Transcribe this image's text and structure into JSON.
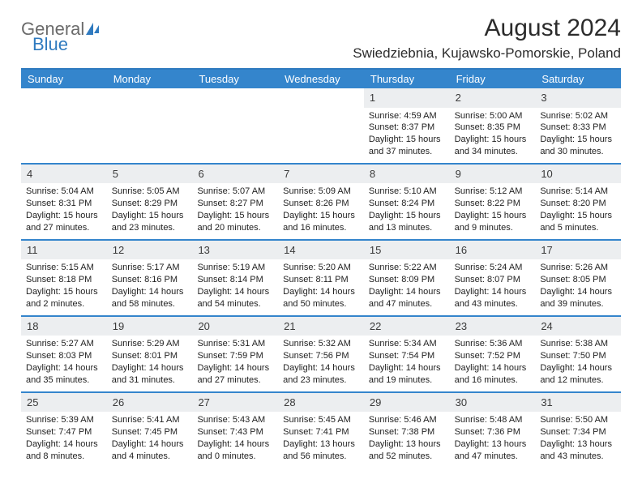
{
  "logo": {
    "part1": "General",
    "part2": "Blue"
  },
  "title": "August 2024",
  "location": "Swiedziebnia, Kujawsko-Pomorskie, Poland",
  "colors": {
    "header_bg": "#3485cc",
    "header_text": "#ffffff",
    "rule": "#2f7abf",
    "daynum_bg": "#eceef0",
    "text": "#222222",
    "logo_gray": "#6b6b6b",
    "logo_blue": "#2f7abf"
  },
  "fonts": {
    "title_size_pt": 22,
    "location_size_pt": 13,
    "dow_size_pt": 10,
    "daynum_size_pt": 10,
    "body_size_pt": 8
  },
  "days_of_week": [
    "Sunday",
    "Monday",
    "Tuesday",
    "Wednesday",
    "Thursday",
    "Friday",
    "Saturday"
  ],
  "weeks": [
    [
      {
        "n": "",
        "sunrise": "",
        "sunset": "",
        "daylight": ""
      },
      {
        "n": "",
        "sunrise": "",
        "sunset": "",
        "daylight": ""
      },
      {
        "n": "",
        "sunrise": "",
        "sunset": "",
        "daylight": ""
      },
      {
        "n": "",
        "sunrise": "",
        "sunset": "",
        "daylight": ""
      },
      {
        "n": "1",
        "sunrise": "Sunrise: 4:59 AM",
        "sunset": "Sunset: 8:37 PM",
        "daylight": "Daylight: 15 hours and 37 minutes."
      },
      {
        "n": "2",
        "sunrise": "Sunrise: 5:00 AM",
        "sunset": "Sunset: 8:35 PM",
        "daylight": "Daylight: 15 hours and 34 minutes."
      },
      {
        "n": "3",
        "sunrise": "Sunrise: 5:02 AM",
        "sunset": "Sunset: 8:33 PM",
        "daylight": "Daylight: 15 hours and 30 minutes."
      }
    ],
    [
      {
        "n": "4",
        "sunrise": "Sunrise: 5:04 AM",
        "sunset": "Sunset: 8:31 PM",
        "daylight": "Daylight: 15 hours and 27 minutes."
      },
      {
        "n": "5",
        "sunrise": "Sunrise: 5:05 AM",
        "sunset": "Sunset: 8:29 PM",
        "daylight": "Daylight: 15 hours and 23 minutes."
      },
      {
        "n": "6",
        "sunrise": "Sunrise: 5:07 AM",
        "sunset": "Sunset: 8:27 PM",
        "daylight": "Daylight: 15 hours and 20 minutes."
      },
      {
        "n": "7",
        "sunrise": "Sunrise: 5:09 AM",
        "sunset": "Sunset: 8:26 PM",
        "daylight": "Daylight: 15 hours and 16 minutes."
      },
      {
        "n": "8",
        "sunrise": "Sunrise: 5:10 AM",
        "sunset": "Sunset: 8:24 PM",
        "daylight": "Daylight: 15 hours and 13 minutes."
      },
      {
        "n": "9",
        "sunrise": "Sunrise: 5:12 AM",
        "sunset": "Sunset: 8:22 PM",
        "daylight": "Daylight: 15 hours and 9 minutes."
      },
      {
        "n": "10",
        "sunrise": "Sunrise: 5:14 AM",
        "sunset": "Sunset: 8:20 PM",
        "daylight": "Daylight: 15 hours and 5 minutes."
      }
    ],
    [
      {
        "n": "11",
        "sunrise": "Sunrise: 5:15 AM",
        "sunset": "Sunset: 8:18 PM",
        "daylight": "Daylight: 15 hours and 2 minutes."
      },
      {
        "n": "12",
        "sunrise": "Sunrise: 5:17 AM",
        "sunset": "Sunset: 8:16 PM",
        "daylight": "Daylight: 14 hours and 58 minutes."
      },
      {
        "n": "13",
        "sunrise": "Sunrise: 5:19 AM",
        "sunset": "Sunset: 8:14 PM",
        "daylight": "Daylight: 14 hours and 54 minutes."
      },
      {
        "n": "14",
        "sunrise": "Sunrise: 5:20 AM",
        "sunset": "Sunset: 8:11 PM",
        "daylight": "Daylight: 14 hours and 50 minutes."
      },
      {
        "n": "15",
        "sunrise": "Sunrise: 5:22 AM",
        "sunset": "Sunset: 8:09 PM",
        "daylight": "Daylight: 14 hours and 47 minutes."
      },
      {
        "n": "16",
        "sunrise": "Sunrise: 5:24 AM",
        "sunset": "Sunset: 8:07 PM",
        "daylight": "Daylight: 14 hours and 43 minutes."
      },
      {
        "n": "17",
        "sunrise": "Sunrise: 5:26 AM",
        "sunset": "Sunset: 8:05 PM",
        "daylight": "Daylight: 14 hours and 39 minutes."
      }
    ],
    [
      {
        "n": "18",
        "sunrise": "Sunrise: 5:27 AM",
        "sunset": "Sunset: 8:03 PM",
        "daylight": "Daylight: 14 hours and 35 minutes."
      },
      {
        "n": "19",
        "sunrise": "Sunrise: 5:29 AM",
        "sunset": "Sunset: 8:01 PM",
        "daylight": "Daylight: 14 hours and 31 minutes."
      },
      {
        "n": "20",
        "sunrise": "Sunrise: 5:31 AM",
        "sunset": "Sunset: 7:59 PM",
        "daylight": "Daylight: 14 hours and 27 minutes."
      },
      {
        "n": "21",
        "sunrise": "Sunrise: 5:32 AM",
        "sunset": "Sunset: 7:56 PM",
        "daylight": "Daylight: 14 hours and 23 minutes."
      },
      {
        "n": "22",
        "sunrise": "Sunrise: 5:34 AM",
        "sunset": "Sunset: 7:54 PM",
        "daylight": "Daylight: 14 hours and 19 minutes."
      },
      {
        "n": "23",
        "sunrise": "Sunrise: 5:36 AM",
        "sunset": "Sunset: 7:52 PM",
        "daylight": "Daylight: 14 hours and 16 minutes."
      },
      {
        "n": "24",
        "sunrise": "Sunrise: 5:38 AM",
        "sunset": "Sunset: 7:50 PM",
        "daylight": "Daylight: 14 hours and 12 minutes."
      }
    ],
    [
      {
        "n": "25",
        "sunrise": "Sunrise: 5:39 AM",
        "sunset": "Sunset: 7:47 PM",
        "daylight": "Daylight: 14 hours and 8 minutes."
      },
      {
        "n": "26",
        "sunrise": "Sunrise: 5:41 AM",
        "sunset": "Sunset: 7:45 PM",
        "daylight": "Daylight: 14 hours and 4 minutes."
      },
      {
        "n": "27",
        "sunrise": "Sunrise: 5:43 AM",
        "sunset": "Sunset: 7:43 PM",
        "daylight": "Daylight: 14 hours and 0 minutes."
      },
      {
        "n": "28",
        "sunrise": "Sunrise: 5:45 AM",
        "sunset": "Sunset: 7:41 PM",
        "daylight": "Daylight: 13 hours and 56 minutes."
      },
      {
        "n": "29",
        "sunrise": "Sunrise: 5:46 AM",
        "sunset": "Sunset: 7:38 PM",
        "daylight": "Daylight: 13 hours and 52 minutes."
      },
      {
        "n": "30",
        "sunrise": "Sunrise: 5:48 AM",
        "sunset": "Sunset: 7:36 PM",
        "daylight": "Daylight: 13 hours and 47 minutes."
      },
      {
        "n": "31",
        "sunrise": "Sunrise: 5:50 AM",
        "sunset": "Sunset: 7:34 PM",
        "daylight": "Daylight: 13 hours and 43 minutes."
      }
    ]
  ]
}
